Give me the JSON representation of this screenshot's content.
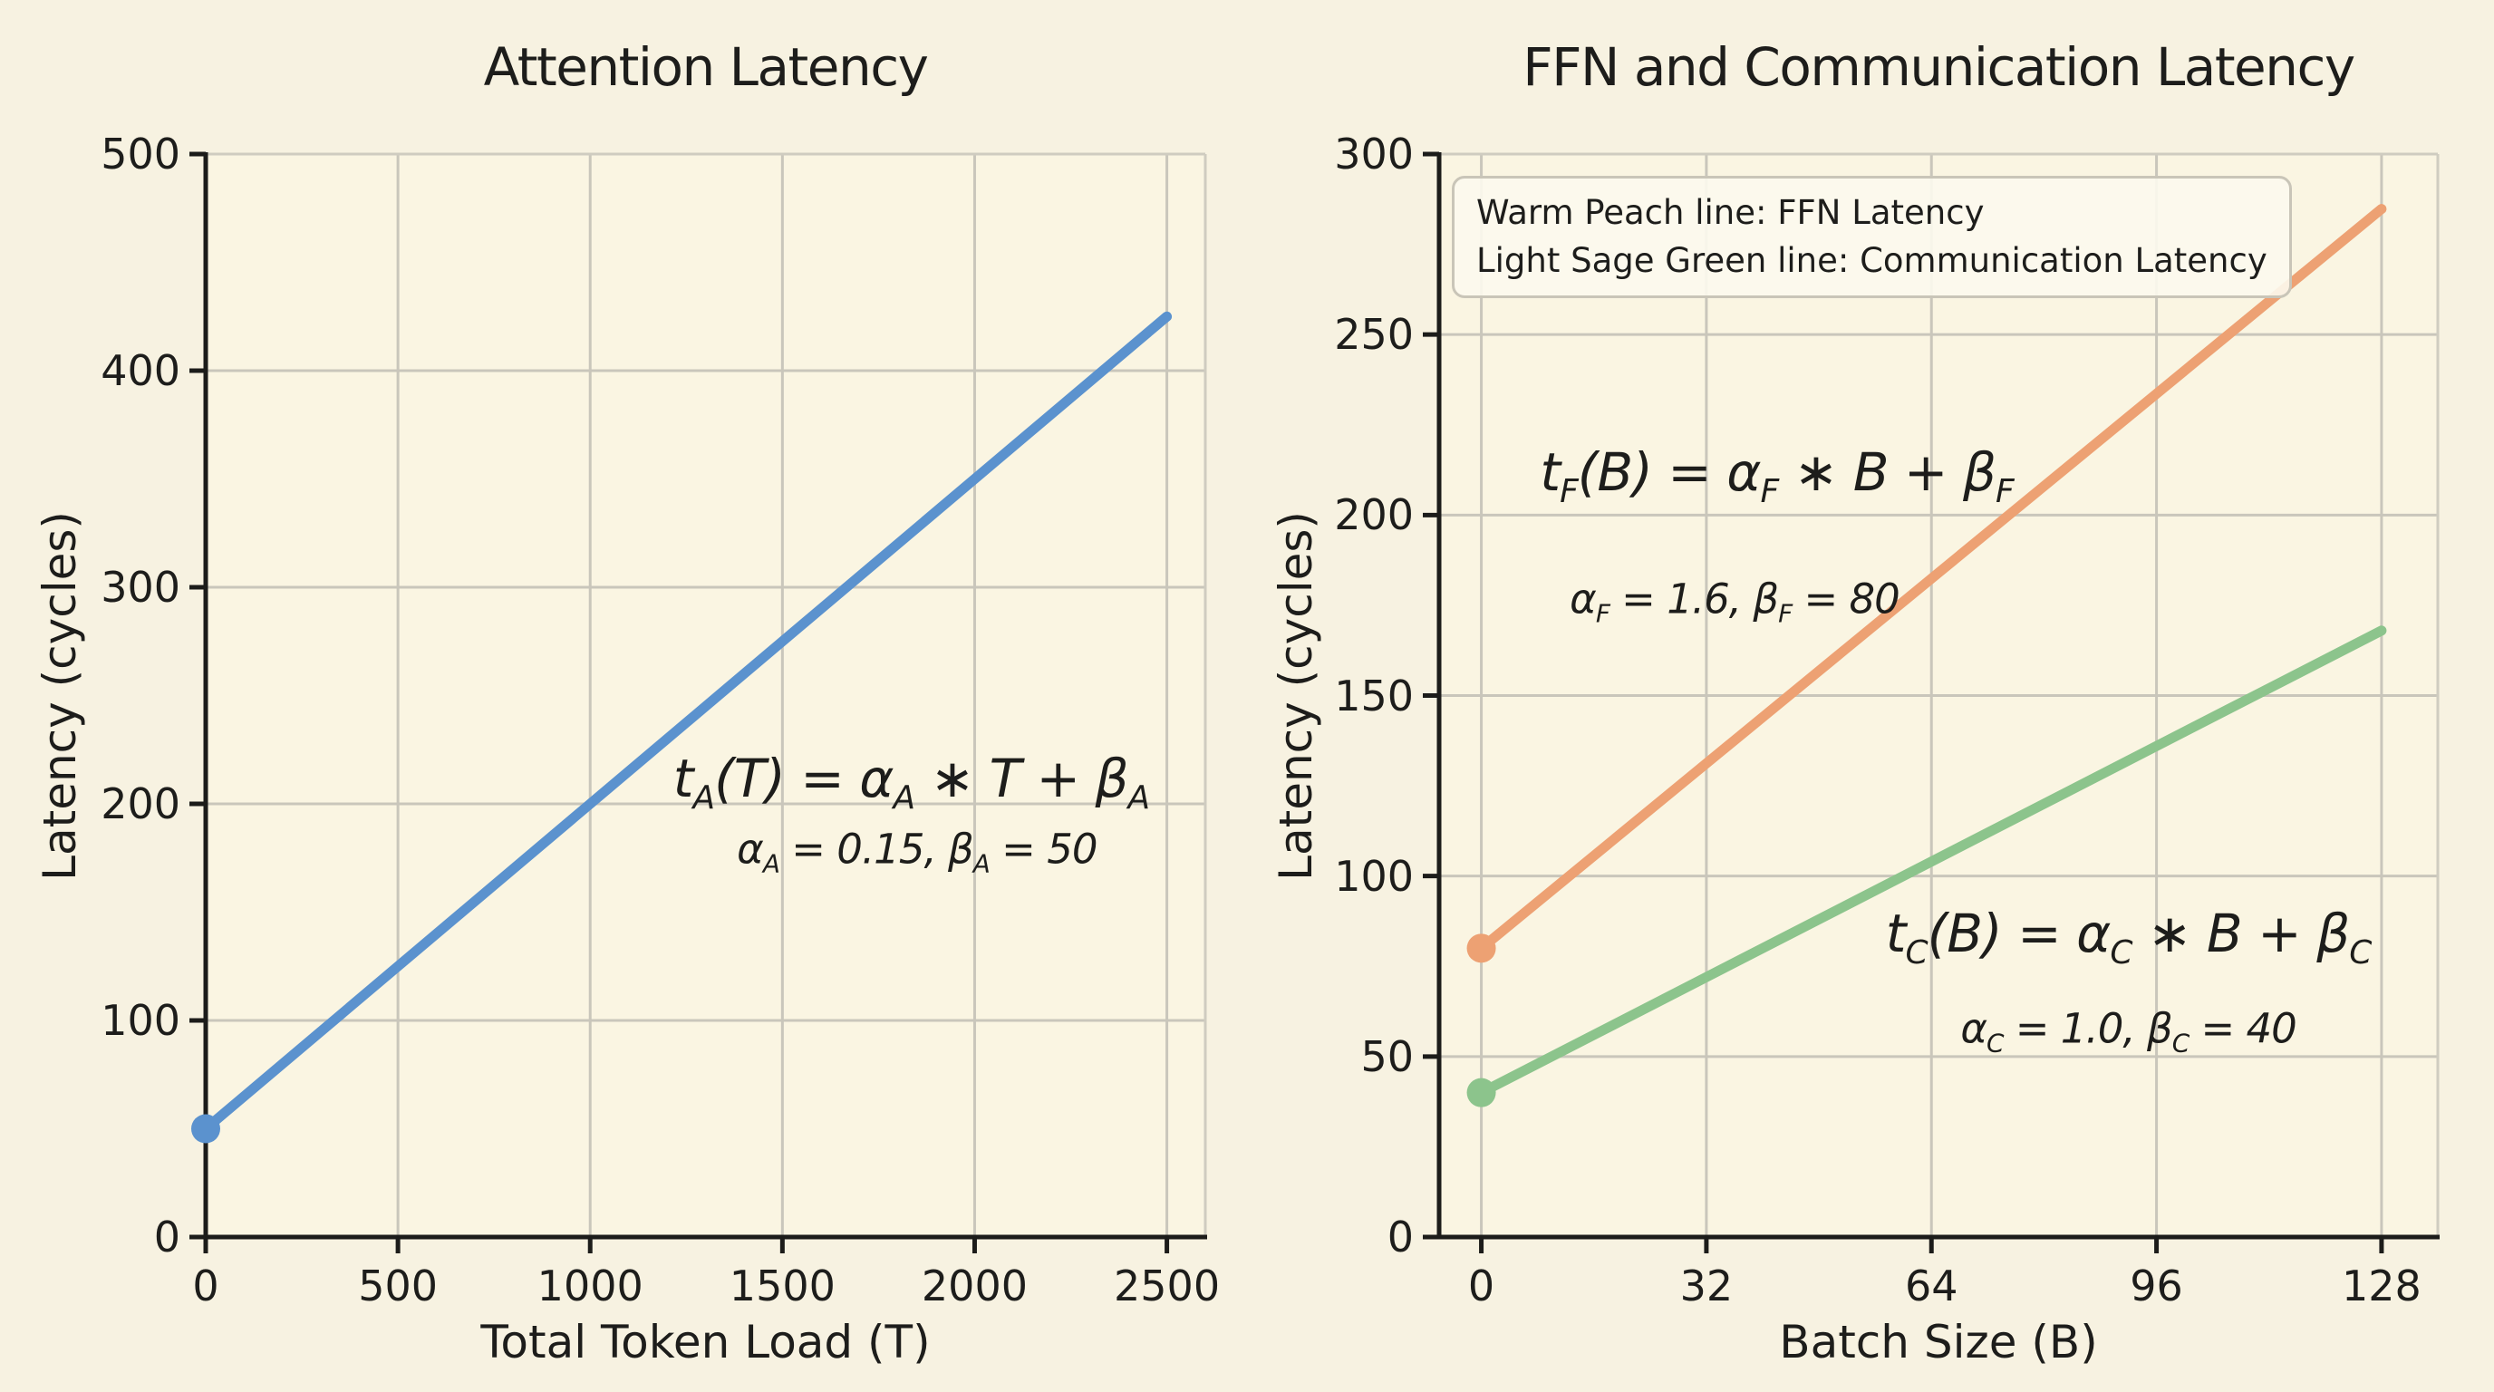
{
  "figure": {
    "background": "#f7f2e1",
    "plot_background": "#faf5e2",
    "grid_color": "#c9c6bb",
    "spine_dark": "#1c1c1a",
    "spine_light": "#cfccc0",
    "text_color": "#1d1d1b"
  },
  "chart_data": [
    {
      "type": "line",
      "title": "Attention Latency",
      "xlabel": "Total Token Load (T)",
      "ylabel": "Latency (cycles)",
      "xlim": [
        0,
        2600
      ],
      "ylim": [
        0,
        500
      ],
      "xticks": [
        0,
        500,
        1000,
        1500,
        2000,
        2500
      ],
      "yticks": [
        0,
        100,
        200,
        300,
        400,
        500
      ],
      "grid": true,
      "series": [
        {
          "name": "Attention Latency",
          "color": "#5b92ce",
          "x": [
            0,
            2500
          ],
          "y": [
            50,
            425
          ],
          "start_marker": true
        }
      ],
      "annotations": [
        {
          "text": "t_[A](T) = α_[A] ∗ T + β_[A]",
          "x": 1835,
          "y": 210,
          "size": "large"
        },
        {
          "text": "α_[A] = 0.15, β_[A] = 50",
          "x": 1850,
          "y": 178,
          "size": "small"
        }
      ]
    },
    {
      "type": "line",
      "title": "FFN and Communication Latency",
      "xlabel": "Batch Size (B)",
      "ylabel": "Latency (cycles)",
      "xlim": [
        -6,
        136
      ],
      "ylim": [
        0,
        300
      ],
      "xticks": [
        0,
        32,
        64,
        96,
        128
      ],
      "yticks": [
        0,
        50,
        100,
        150,
        200,
        250,
        300
      ],
      "grid": true,
      "legend": {
        "position": "upper left",
        "lines": [
          "Warm Peach line: FFN Latency",
          "Light Sage Green line: Communication Latency"
        ]
      },
      "series": [
        {
          "name": "FFN Latency",
          "color": "#eda173",
          "x": [
            0,
            128
          ],
          "y": [
            80,
            284.8
          ],
          "start_marker": true
        },
        {
          "name": "Communication Latency",
          "color": "#8cc48c",
          "x": [
            0,
            128
          ],
          "y": [
            40,
            168
          ],
          "start_marker": true
        }
      ],
      "annotations": [
        {
          "text": "t_[F](B) = α_[F] ∗ B + β_[F]",
          "x": 42,
          "y": 211,
          "size": "large"
        },
        {
          "text": "α_[F] = 1.6, β_[F] = 80",
          "x": 36,
          "y": 176,
          "size": "small"
        },
        {
          "text": "t_[C](B) = α_[C] ∗ B + β_[C]",
          "x": 92,
          "y": 83,
          "size": "large"
        },
        {
          "text": "α_[C] = 1.0, β_[C] = 40",
          "x": 92,
          "y": 57,
          "size": "small"
        }
      ]
    }
  ]
}
